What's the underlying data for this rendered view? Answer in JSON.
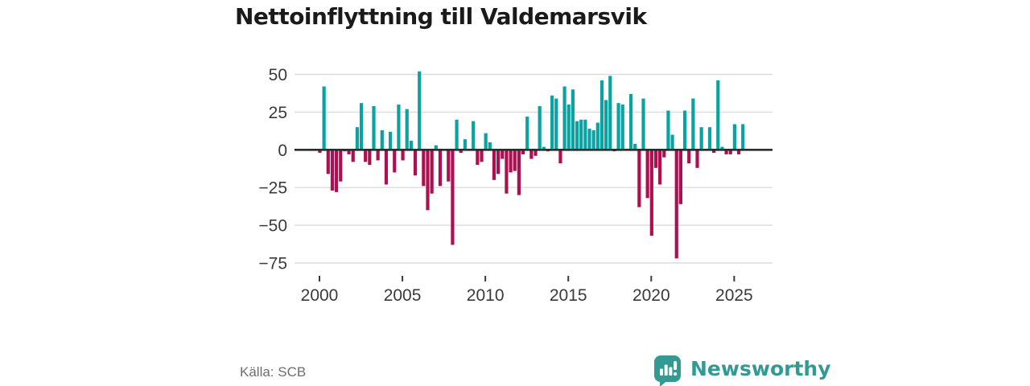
{
  "title": "Nettoinflyttning till Valdemarsvik",
  "source": "Källa: SCB",
  "branding": {
    "name": "Newsworthy",
    "icon": "newsworthy-speech-bubble-bar-chart-icon"
  },
  "colors": {
    "positive": "#0aa3a3",
    "negative": "#ad1050",
    "grid": "#dcdcdc",
    "zero_line": "#2b2b2b",
    "axis_text": "#3a3a3a",
    "title_text": "#1a1a1a",
    "source_text": "#6e6e6e",
    "brand_teal": "#339a93",
    "background": "#ffffff"
  },
  "chart_data": {
    "type": "bar",
    "title": "Nettoinflyttning till Valdemarsvik",
    "frequency": "quarterly",
    "x_start": "2000Q1",
    "x_end": "2025Q3",
    "x_tick_years": [
      2000,
      2005,
      2010,
      2015,
      2020,
      2025
    ],
    "x_tick_labels": [
      "2000",
      "2005",
      "2010",
      "2015",
      "2020",
      "2025"
    ],
    "y_ticks": [
      50,
      25,
      0,
      -25,
      -50,
      -75
    ],
    "y_tick_labels": [
      "50",
      "25",
      "0",
      "−25",
      "−50",
      "−75"
    ],
    "ylim": [
      -82,
      55
    ],
    "grid": "horizontal",
    "legend": "none",
    "bar_color_rule": "teal if value >= 0, crimson if value < 0",
    "series": [
      {
        "name": "Nettoinflyttning",
        "values": [
          -2,
          42,
          -16,
          -27,
          -28,
          -21,
          -1,
          -3,
          -8,
          15,
          31,
          -8,
          -10,
          29,
          -7,
          13,
          -23,
          12,
          -15,
          30,
          -7,
          27,
          6,
          -17,
          52,
          -24,
          -40,
          -29,
          3,
          -24,
          0,
          -21,
          -63,
          20,
          -2,
          7,
          0,
          19,
          -10,
          -8,
          11,
          5,
          -20,
          -16,
          -6,
          -29,
          -15,
          -14,
          -30,
          -3,
          22,
          -6,
          -4,
          29,
          2,
          -1,
          36,
          34,
          -9,
          42,
          30,
          40,
          19,
          20,
          20,
          14,
          13,
          18,
          46,
          33,
          49,
          -1,
          31,
          30,
          0,
          37,
          4,
          -38,
          34,
          -32,
          -57,
          -12,
          -23,
          -5,
          26,
          10,
          -72,
          -36,
          26,
          -9,
          34,
          -12,
          15,
          0,
          15,
          -2,
          46,
          2,
          -3,
          -3,
          17,
          -3,
          17
        ]
      }
    ]
  }
}
